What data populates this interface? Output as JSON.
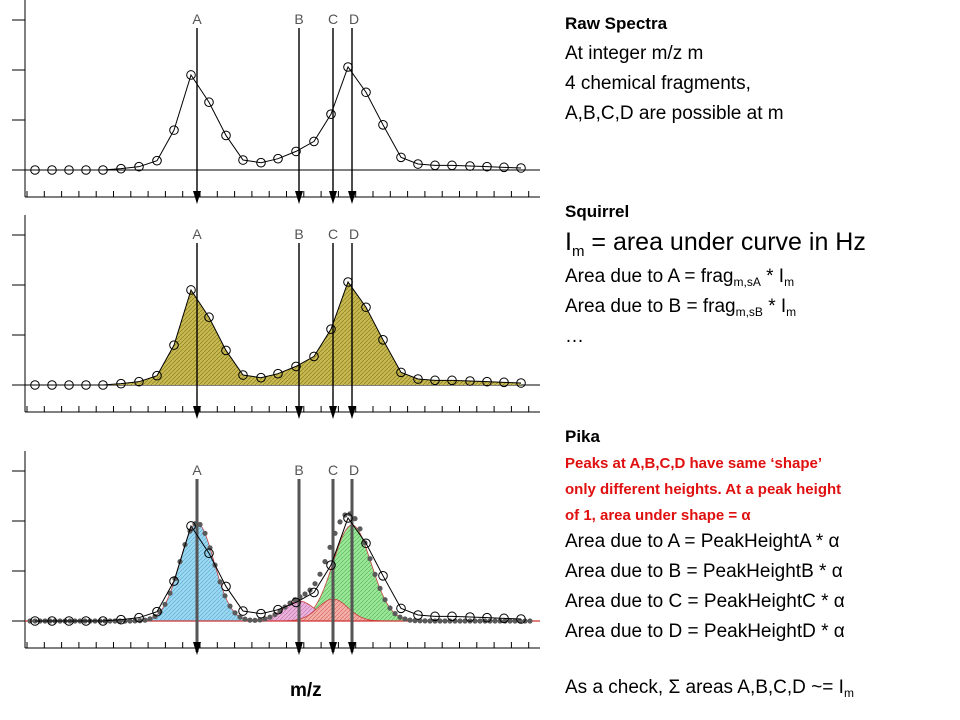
{
  "panels": [
    {
      "id": "raw",
      "title": "Raw Spectra",
      "lines": [
        "At integer m/z m",
        "4 chemical fragments,",
        "A,B,C,D are possible at m"
      ]
    },
    {
      "id": "squirrel",
      "title": "Squirrel",
      "im_line": {
        "main": "I",
        "sub": "m",
        "rest": " = area under curve in Hz"
      },
      "area_a": {
        "pre": "Area due to A = frag",
        "sub1": "m,sA",
        "mid": " * I",
        "sub2": "m"
      },
      "area_b": {
        "pre": "Area due to B = frag",
        "sub1": "m,sB",
        "mid": " * I",
        "sub2": "m"
      },
      "ellipsis": "…"
    },
    {
      "id": "pika",
      "title": "Pika",
      "notes": [
        "Peaks at A,B,C,D have same ‘shape’",
        "only different heights. At a peak height",
        " of 1, area under shape = α"
      ],
      "areas": [
        "Area due to A = PeakHeightA * α",
        "Area due to B = PeakHeightB * α",
        "Area due to C = PeakHeightC * α",
        "Area due to D = PeakHeightD * α"
      ],
      "check": {
        "pre": "As a check, Σ areas A,B,C,D ~= I",
        "sub": "m"
      }
    }
  ],
  "x_axis_label": "m/z",
  "peak_labels": [
    "A",
    "B",
    "C",
    "D"
  ],
  "colors": {
    "squirrel_fill": "#c9bb4e",
    "peak_a": "#8fd3f0",
    "peak_b": "#e3a7d6",
    "peak_c": "#f1a0a0",
    "peak_d": "#8de38c",
    "note_red": "#e01010",
    "marker_dark": "#555555"
  }
}
